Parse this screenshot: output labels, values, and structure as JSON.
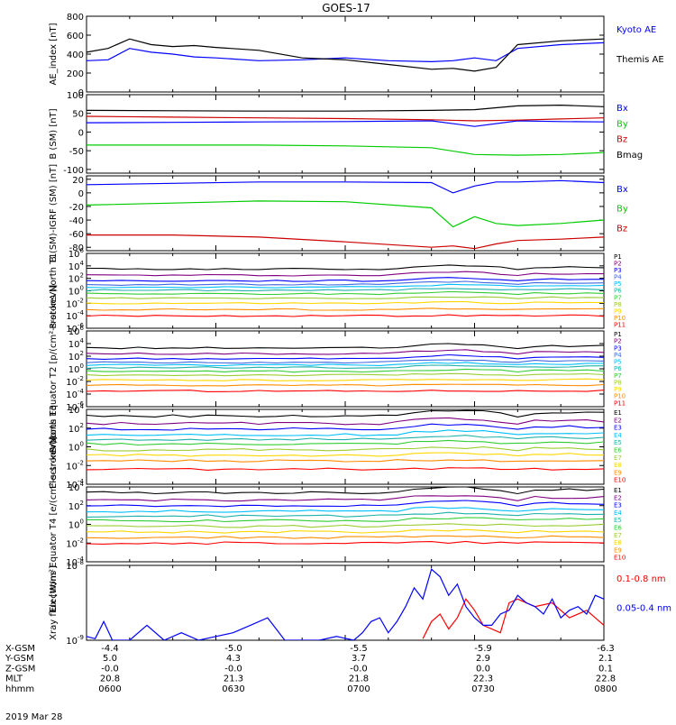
{
  "title": "GOES-17",
  "date_label": "2019 Mar 28",
  "orbit_table": {
    "rows": [
      {
        "label": "X-GSM",
        "values": [
          "-4.4",
          "-5.0",
          "-5.5",
          "-5.9",
          "-6.3"
        ]
      },
      {
        "label": "Y-GSM",
        "values": [
          "5.0",
          "4.3",
          "3.7",
          "2.9",
          "2.1"
        ]
      },
      {
        "label": "Z-GSM",
        "values": [
          "-0.0",
          "-0.0",
          "-0.0",
          "0.0",
          "0.1"
        ]
      },
      {
        "label": "MLT",
        "values": [
          "20.8",
          "21.3",
          "21.8",
          "22.3",
          "22.8"
        ]
      },
      {
        "label": "hhmm",
        "values": [
          "0600",
          "0630",
          "0700",
          "0730",
          "0800"
        ]
      }
    ]
  },
  "chart_data": [
    {
      "type": "line",
      "ylabel": "AE_index [nT]",
      "yscale": "linear",
      "ylim": [
        0,
        800
      ],
      "yticks": [
        "0",
        "200",
        "400",
        "600",
        "800"
      ],
      "xlim": [
        "0600",
        "0800"
      ],
      "series": [
        {
          "name": "Kyoto AE",
          "color": "#0000ff",
          "x": [
            0,
            5,
            10,
            15,
            20,
            25,
            30,
            40,
            50,
            60,
            70,
            80,
            85,
            90,
            95,
            100,
            110,
            120
          ],
          "y": [
            330,
            340,
            460,
            420,
            400,
            370,
            360,
            330,
            340,
            360,
            330,
            320,
            330,
            360,
            330,
            460,
            500,
            520
          ]
        },
        {
          "name": "Themis AE",
          "color": "#000000",
          "x": [
            0,
            5,
            10,
            15,
            20,
            25,
            30,
            40,
            50,
            60,
            70,
            80,
            85,
            90,
            95,
            100,
            110,
            120
          ],
          "y": [
            420,
            460,
            560,
            500,
            480,
            490,
            470,
            440,
            360,
            340,
            290,
            240,
            250,
            220,
            260,
            500,
            540,
            560
          ]
        }
      ]
    },
    {
      "type": "line",
      "ylabel": "B (SM) [nT]",
      "yscale": "linear",
      "ylim": [
        -110,
        100
      ],
      "yticks": [
        "-100",
        "-50",
        "0",
        "50",
        "100"
      ],
      "series": [
        {
          "name": "Bx",
          "color": "#0000ff",
          "x": [
            0,
            20,
            40,
            60,
            80,
            90,
            100,
            110,
            120
          ],
          "y": [
            25,
            26,
            27,
            28,
            30,
            15,
            30,
            28,
            27
          ]
        },
        {
          "name": "By",
          "color": "#00cc00",
          "x": [
            0,
            20,
            40,
            60,
            80,
            90,
            100,
            110,
            120
          ],
          "y": [
            -35,
            -35,
            -35,
            -37,
            -42,
            -60,
            -62,
            -60,
            -55
          ]
        },
        {
          "name": "Bz",
          "color": "#cc0000",
          "x": [
            0,
            20,
            40,
            60,
            80,
            90,
            100,
            110,
            120
          ],
          "y": [
            42,
            40,
            38,
            36,
            33,
            30,
            32,
            35,
            38
          ]
        },
        {
          "name": "Bmag",
          "color": "#000000",
          "x": [
            0,
            20,
            40,
            60,
            80,
            90,
            100,
            110,
            120
          ],
          "y": [
            58,
            57,
            56,
            56,
            58,
            60,
            70,
            72,
            68
          ]
        }
      ]
    },
    {
      "type": "line",
      "ylabel": "B (SM)-IGRF (SM) [nT]",
      "yscale": "linear",
      "ylim": [
        -85,
        25
      ],
      "yticks": [
        "-80",
        "-60",
        "-40",
        "-20",
        "0",
        "20"
      ],
      "series": [
        {
          "name": "Bx",
          "color": "#0000ff",
          "x": [
            0,
            20,
            40,
            60,
            80,
            85,
            90,
            95,
            100,
            110,
            120
          ],
          "y": [
            12,
            14,
            16,
            16,
            15,
            0,
            10,
            16,
            16,
            18,
            15
          ]
        },
        {
          "name": "By",
          "color": "#00cc00",
          "x": [
            0,
            20,
            40,
            60,
            80,
            85,
            90,
            95,
            100,
            110,
            120
          ],
          "y": [
            -18,
            -15,
            -12,
            -13,
            -22,
            -50,
            -35,
            -45,
            -48,
            -45,
            -40
          ]
        },
        {
          "name": "Bz",
          "color": "#cc0000",
          "x": [
            0,
            20,
            40,
            60,
            80,
            85,
            90,
            95,
            100,
            110,
            120
          ],
          "y": [
            -62,
            -62,
            -65,
            -72,
            -80,
            -78,
            -82,
            -75,
            -70,
            -68,
            -65
          ]
        }
      ]
    },
    {
      "type": "line",
      "ylabel": "Protons North T1",
      "yscale": "log",
      "ylim_exp": [
        -6,
        6
      ],
      "ytick_exps": [
        -6,
        -4,
        -2,
        0,
        2,
        4,
        6
      ],
      "channels": [
        "P1",
        "P2",
        "P3",
        "P4",
        "P5",
        "P6",
        "P7",
        "P8",
        "P9",
        "P10",
        "P11"
      ],
      "channel_colors": [
        "#000000",
        "#800080",
        "#0000ff",
        "#4169e1",
        "#00bfff",
        "#20b2aa",
        "#32cd32",
        "#9acd32",
        "#ffd700",
        "#ff8c00",
        "#ff0000"
      ],
      "base_exp": [
        3.5,
        2.5,
        1.6,
        1.0,
        0.6,
        0.1,
        -0.5,
        -1.2,
        -2.0,
        -3.0,
        -4.0
      ]
    },
    {
      "type": "line",
      "ylabel": "Protons Equator T2 [p/(cm²-s-sr-keV)]",
      "yscale": "log",
      "ylim_exp": [
        -6,
        6
      ],
      "ytick_exps": [
        -6,
        -4,
        -2,
        0,
        2,
        4,
        6
      ],
      "channels": [
        "P1",
        "P2",
        "P3",
        "P4",
        "P5",
        "P6",
        "P7",
        "P8",
        "P9",
        "P10",
        "P11"
      ],
      "channel_colors": [
        "#000000",
        "#800080",
        "#0000ff",
        "#4169e1",
        "#00bfff",
        "#20b2aa",
        "#32cd32",
        "#9acd32",
        "#ffd700",
        "#ff8c00",
        "#ff0000"
      ],
      "base_exp": [
        3.3,
        2.4,
        1.6,
        1.0,
        0.6,
        0.2,
        -0.4,
        -1.0,
        -1.8,
        -2.6,
        -3.5
      ]
    },
    {
      "type": "line",
      "ylabel": "Electrons North T3",
      "yscale": "log",
      "ylim_exp": [
        -4,
        4
      ],
      "ytick_exps": [
        -4,
        -2,
        0,
        2,
        4
      ],
      "channels": [
        "E1",
        "E2",
        "E3",
        "E4",
        "E5",
        "E6",
        "E7",
        "E8",
        "E9",
        "E10"
      ],
      "channel_colors": [
        "#000000",
        "#800080",
        "#0000ff",
        "#00bfff",
        "#20b2aa",
        "#32cd32",
        "#9acd32",
        "#ffd700",
        "#ff8c00",
        "#ff0000"
      ],
      "base_exp": [
        3.3,
        2.5,
        1.9,
        1.3,
        0.8,
        0.3,
        -0.3,
        -0.9,
        -1.5,
        -2.4
      ]
    },
    {
      "type": "line",
      "ylabel": "Electrons Equator T4 [e/(cm²-s-sr-keV)]",
      "yscale": "log",
      "ylim_exp": [
        -4,
        4
      ],
      "ytick_exps": [
        -4,
        -2,
        0,
        2,
        4
      ],
      "channels": [
        "E1",
        "E2",
        "E3",
        "E4",
        "E5",
        "E6",
        "E7",
        "E8",
        "E9",
        "E10"
      ],
      "channel_colors": [
        "#000000",
        "#800080",
        "#0000ff",
        "#00bfff",
        "#20b2aa",
        "#32cd32",
        "#9acd32",
        "#ffd700",
        "#ff8c00",
        "#ff0000"
      ],
      "base_exp": [
        3.4,
        2.6,
        2.0,
        1.4,
        0.9,
        0.4,
        -0.2,
        -0.8,
        -1.4,
        -2.0
      ]
    },
    {
      "type": "line",
      "ylabel": "Xray flux [W/m²]",
      "yscale": "log",
      "ylim_exp": [
        -9,
        -8
      ],
      "ytick_exps": [
        -9,
        -8
      ],
      "series": [
        {
          "name": "0.1-0.8 nm",
          "color": "#ff0000",
          "x": [
            78,
            80,
            82,
            84,
            86,
            88,
            90,
            92,
            96,
            98,
            100,
            104,
            108,
            112,
            116,
            120
          ],
          "y": [
            0.02,
            0.25,
            0.35,
            0.15,
            0.3,
            0.55,
            0.4,
            0.2,
            0.1,
            0.5,
            0.55,
            0.45,
            0.5,
            0.3,
            0.4,
            0.2
          ]
        },
        {
          "name": "0.05-0.4 nm",
          "color": "#0000ff",
          "x": [
            0,
            2,
            4,
            6,
            10,
            14,
            18,
            22,
            26,
            30,
            34,
            38,
            42,
            46,
            50,
            54,
            58,
            62,
            64,
            66,
            68,
            70,
            72,
            74,
            76,
            78,
            80,
            82,
            84,
            86,
            88,
            90,
            92,
            94,
            96,
            98,
            100,
            102,
            104,
            106,
            108,
            110,
            112,
            114,
            116,
            118,
            120
          ],
          "y": [
            0.05,
            0.02,
            0.25,
            0.0,
            0.0,
            0.2,
            0.0,
            0.1,
            0.0,
            0.05,
            0.1,
            0.2,
            0.3,
            0.0,
            0.0,
            0.0,
            0.05,
            0.0,
            0.1,
            0.25,
            0.3,
            0.1,
            0.25,
            0.45,
            0.7,
            0.55,
            0.95,
            0.85,
            0.6,
            0.75,
            0.45,
            0.3,
            0.2,
            0.2,
            0.35,
            0.4,
            0.6,
            0.5,
            0.45,
            0.35,
            0.55,
            0.3,
            0.4,
            0.45,
            0.35,
            0.6,
            0.55
          ]
        }
      ]
    }
  ],
  "legend_labels": {
    "ae": [
      "Kyoto AE",
      "Themis AE"
    ],
    "b": [
      "Bx",
      "By",
      "Bz",
      "Bmag"
    ],
    "bi": [
      "Bx",
      "By",
      "Bz"
    ],
    "p": [
      "P1",
      "P2",
      "P3",
      "P4",
      "P5",
      "P6",
      "P7",
      "P8",
      "P9",
      "P10",
      "P11"
    ],
    "e": [
      "E1",
      "E2",
      "E3",
      "E4",
      "E5",
      "E6",
      "E7",
      "E8",
      "E9",
      "E10"
    ],
    "xray": [
      "0.1-0.8 nm",
      "0.05-0.4 nm"
    ]
  },
  "colors": {
    "axis": "#000000",
    "background": "#ffffff"
  }
}
